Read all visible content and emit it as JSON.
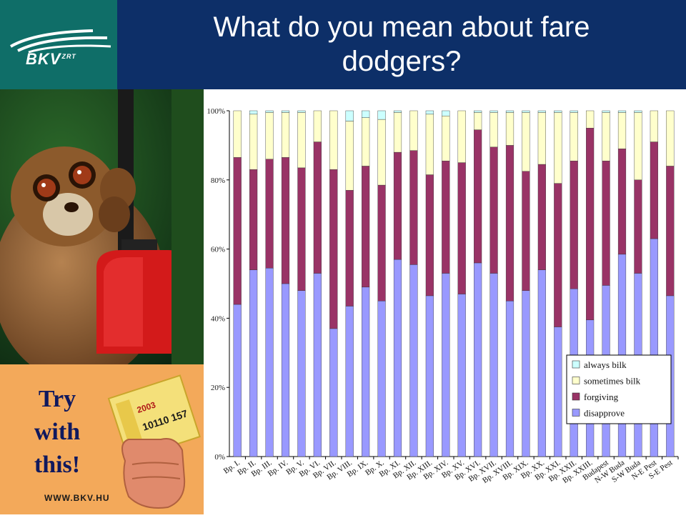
{
  "header": {
    "logo_text": "BKV",
    "logo_suffix": "ZRT",
    "title_line1": "What do you mean about fare",
    "title_line2": "dodgers?"
  },
  "promo": {
    "line1": "Try",
    "line2": "with",
    "line3": "this!",
    "url": "WWW.BKV.HU",
    "ticket_year": "2003",
    "ticket_numbers": "10110 157"
  },
  "colors": {
    "always_bilk": "#ccffff",
    "sometimes_bilk": "#ffffcc",
    "forgiving": "#993366",
    "disapprove": "#9999ff",
    "header_blue": "#0d2f68",
    "logo_green": "#0f6e68"
  },
  "chart_data": {
    "type": "bar",
    "stacked": true,
    "percent": true,
    "title": "",
    "xlabel": "",
    "ylabel": "",
    "ylim": [
      0,
      100
    ],
    "yticks": [
      "0%",
      "20%",
      "40%",
      "60%",
      "80%",
      "100%"
    ],
    "grid": false,
    "legend_position": "bottom-right",
    "categories": [
      "Bp. I.",
      "Bp. II.",
      "Bp. III.",
      "Bp. IV.",
      "Bp. V.",
      "Bp. VI.",
      "Bp. VII.",
      "Bp. VIII.",
      "Bp. IX.",
      "Bp. X.",
      "Bp. XI.",
      "Bp. XII.",
      "Bp. XIII.",
      "Bp. XIV.",
      "Bp. XV.",
      "Bp. XVI.",
      "Bp. XVII.",
      "Bp. XVIII.",
      "Bp. XIX.",
      "Bp. XX.",
      "Bp. XXI.",
      "Bp. XXII.",
      "Bp. XXIII.",
      "Budapest",
      "N-W Buda",
      "S-W Buda",
      "N-E Pest",
      "S-E Pest"
    ],
    "series": [
      {
        "name": "disapprove",
        "values": [
          44,
          54,
          54.5,
          50,
          48,
          53,
          37,
          43.5,
          49,
          45,
          57,
          55.5,
          46.5,
          53,
          47,
          56,
          53,
          45,
          48,
          54,
          37.5,
          48.5,
          39.5,
          49.5,
          58.5,
          53,
          63,
          46.5
        ]
      },
      {
        "name": "forgiving",
        "values": [
          42.5,
          29,
          31.5,
          36.5,
          35.5,
          38,
          46,
          33.5,
          35,
          33.5,
          31,
          33,
          35,
          32.5,
          38,
          38.5,
          36.5,
          45,
          34.5,
          30.5,
          41.5,
          37,
          55.5,
          36,
          30.5,
          27,
          28,
          37.5
        ]
      },
      {
        "name": "sometimes bilk",
        "values": [
          13.5,
          16,
          13.5,
          13,
          16,
          9,
          17,
          20,
          14,
          19,
          11.5,
          11.5,
          17.5,
          13,
          15,
          5,
          10,
          9.5,
          17,
          15,
          20.5,
          14,
          5,
          14,
          10.5,
          19.5,
          9,
          16
        ]
      },
      {
        "name": "always bilk",
        "values": [
          0,
          1,
          0.5,
          0.5,
          0.5,
          0,
          0,
          3,
          2,
          2.5,
          0.5,
          0,
          1,
          1.5,
          0,
          0.5,
          0.5,
          0.5,
          0.5,
          0.5,
          0.5,
          0.5,
          0,
          0.5,
          0.5,
          0.5,
          0,
          0
        ]
      }
    ]
  }
}
